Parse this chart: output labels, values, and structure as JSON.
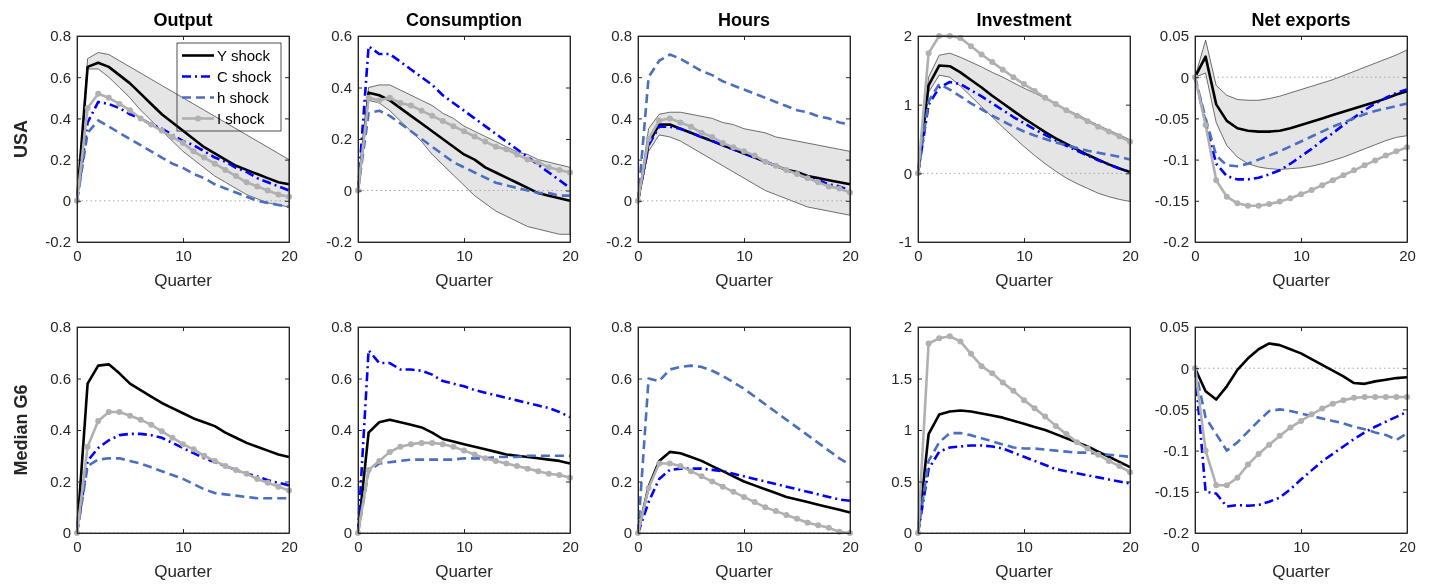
{
  "chart_data": [
    {
      "type": "line",
      "title": "Output",
      "xlabel": "Quarter",
      "ylabel": "USA",
      "x": [
        0,
        1,
        2,
        3,
        4,
        5,
        6,
        7,
        8,
        9,
        10,
        11,
        12,
        13,
        14,
        15,
        16,
        17,
        18,
        19,
        20
      ],
      "xlim": [
        0,
        20
      ],
      "xticks": [
        0,
        10,
        20
      ],
      "ylim": [
        -0.2,
        0.8
      ],
      "yticks": [
        -0.2,
        0,
        0.2,
        0.4,
        0.6,
        0.8
      ],
      "legend": "top right",
      "ref_lines": [
        {
          "axis": "y",
          "value": 0,
          "color": "#a6a6a6",
          "line_style": "dotted"
        }
      ],
      "series": [
        {
          "name": "Y shock",
          "color": "#000000",
          "line_style": "solid",
          "values": [
            0,
            0.65,
            0.67,
            0.65,
            0.61,
            0.57,
            0.52,
            0.47,
            0.42,
            0.38,
            0.34,
            0.3,
            0.26,
            0.23,
            0.2,
            0.17,
            0.15,
            0.13,
            0.11,
            0.09,
            0.08
          ],
          "lower": [
            0,
            0.64,
            0.64,
            0.6,
            0.55,
            0.5,
            0.44,
            0.39,
            0.34,
            0.29,
            0.24,
            0.2,
            0.16,
            0.12,
            0.09,
            0.06,
            0.03,
            0.01,
            -0.01,
            -0.02,
            -0.03
          ],
          "upper": [
            0,
            0.69,
            0.72,
            0.71,
            0.68,
            0.65,
            0.62,
            0.59,
            0.56,
            0.53,
            0.5,
            0.47,
            0.44,
            0.41,
            0.38,
            0.35,
            0.32,
            0.29,
            0.26,
            0.23,
            0.2
          ]
        },
        {
          "name": "C shock",
          "color": "#0000ff",
          "line_style": "dashdot",
          "values": [
            0,
            0.38,
            0.48,
            0.47,
            0.45,
            0.42,
            0.4,
            0.37,
            0.35,
            0.32,
            0.29,
            0.27,
            0.24,
            0.21,
            0.19,
            0.16,
            0.14,
            0.11,
            0.09,
            0.07,
            0.05
          ]
        },
        {
          "name": "h shock",
          "color": "#4a6fc0",
          "line_style": "dashed",
          "values": [
            0,
            0.33,
            0.39,
            0.36,
            0.33,
            0.3,
            0.27,
            0.24,
            0.21,
            0.18,
            0.16,
            0.13,
            0.11,
            0.08,
            0.06,
            0.04,
            0.02,
            0.0,
            -0.01,
            -0.02,
            -0.03
          ]
        },
        {
          "name": "I shock",
          "color": "#b0b0b0",
          "line_style": "solid",
          "marker": "circle",
          "values": [
            0,
            0.45,
            0.52,
            0.5,
            0.47,
            0.44,
            0.4,
            0.37,
            0.34,
            0.31,
            0.28,
            0.24,
            0.21,
            0.18,
            0.15,
            0.12,
            0.09,
            0.07,
            0.05,
            0.03,
            0.02
          ]
        }
      ]
    },
    {
      "type": "line",
      "title": "Consumption",
      "xlabel": "Quarter",
      "x": [
        0,
        1,
        2,
        3,
        4,
        5,
        6,
        7,
        8,
        9,
        10,
        11,
        12,
        13,
        14,
        15,
        16,
        17,
        18,
        19,
        20
      ],
      "xlim": [
        0,
        20
      ],
      "xticks": [
        0,
        10,
        20
      ],
      "ylim": [
        -0.2,
        0.6
      ],
      "yticks": [
        -0.2,
        0,
        0.2,
        0.4,
        0.6
      ],
      "ref_lines": [
        {
          "axis": "y",
          "value": 0,
          "color": "#a6a6a6",
          "line_style": "dotted"
        }
      ],
      "series": [
        {
          "color": "#000000",
          "line_style": "solid",
          "values": [
            0,
            0.38,
            0.37,
            0.35,
            0.32,
            0.29,
            0.26,
            0.23,
            0.2,
            0.17,
            0.14,
            0.12,
            0.09,
            0.07,
            0.05,
            0.03,
            0.01,
            -0.01,
            -0.02,
            -0.03,
            -0.04
          ],
          "lower": [
            0,
            0.35,
            0.34,
            0.31,
            0.27,
            0.23,
            0.19,
            0.14,
            0.1,
            0.06,
            0.02,
            -0.02,
            -0.05,
            -0.08,
            -0.1,
            -0.12,
            -0.14,
            -0.15,
            -0.16,
            -0.17,
            -0.17
          ],
          "upper": [
            0,
            0.4,
            0.41,
            0.41,
            0.39,
            0.37,
            0.35,
            0.33,
            0.3,
            0.28,
            0.25,
            0.23,
            0.21,
            0.19,
            0.17,
            0.15,
            0.14,
            0.12,
            0.11,
            0.1,
            0.09
          ]
        },
        {
          "color": "#0000ff",
          "line_style": "dashdot",
          "values": [
            0,
            0.56,
            0.53,
            0.53,
            0.5,
            0.47,
            0.44,
            0.41,
            0.37,
            0.34,
            0.31,
            0.28,
            0.25,
            0.22,
            0.19,
            0.16,
            0.13,
            0.1,
            0.07,
            0.04,
            0.01
          ]
        },
        {
          "color": "#4a6fc0",
          "line_style": "dashed",
          "values": [
            0,
            0.3,
            0.31,
            0.29,
            0.26,
            0.23,
            0.2,
            0.17,
            0.14,
            0.11,
            0.09,
            0.07,
            0.05,
            0.03,
            0.02,
            0.01,
            0.0,
            -0.01,
            -0.01,
            -0.02,
            -0.02
          ]
        },
        {
          "color": "#b0b0b0",
          "line_style": "solid",
          "marker": "circle",
          "values": [
            0,
            0.36,
            0.35,
            0.36,
            0.34,
            0.33,
            0.31,
            0.29,
            0.27,
            0.25,
            0.23,
            0.21,
            0.19,
            0.17,
            0.16,
            0.14,
            0.12,
            0.11,
            0.09,
            0.08,
            0.07
          ]
        }
      ]
    },
    {
      "type": "line",
      "title": "Hours",
      "xlabel": "Quarter",
      "x": [
        0,
        1,
        2,
        3,
        4,
        5,
        6,
        7,
        8,
        9,
        10,
        11,
        12,
        13,
        14,
        15,
        16,
        17,
        18,
        19,
        20
      ],
      "xlim": [
        0,
        20
      ],
      "xticks": [
        0,
        10,
        20
      ],
      "ylim": [
        -0.2,
        0.8
      ],
      "yticks": [
        -0.2,
        0,
        0.2,
        0.4,
        0.6,
        0.8
      ],
      "ref_lines": [
        {
          "axis": "y",
          "value": 0,
          "color": "#a6a6a6",
          "line_style": "dotted"
        }
      ],
      "series": [
        {
          "color": "#000000",
          "line_style": "solid",
          "values": [
            0,
            0.28,
            0.37,
            0.37,
            0.35,
            0.33,
            0.31,
            0.29,
            0.27,
            0.25,
            0.23,
            0.21,
            0.19,
            0.17,
            0.15,
            0.14,
            0.12,
            0.11,
            0.1,
            0.09,
            0.08
          ],
          "lower": [
            0,
            0.24,
            0.32,
            0.31,
            0.29,
            0.26,
            0.23,
            0.2,
            0.17,
            0.14,
            0.11,
            0.08,
            0.05,
            0.03,
            0.01,
            -0.01,
            -0.03,
            -0.04,
            -0.05,
            -0.06,
            -0.07
          ],
          "upper": [
            0,
            0.35,
            0.42,
            0.43,
            0.43,
            0.42,
            0.41,
            0.4,
            0.38,
            0.37,
            0.35,
            0.34,
            0.33,
            0.31,
            0.3,
            0.29,
            0.28,
            0.27,
            0.26,
            0.25,
            0.24
          ]
        },
        {
          "color": "#0000ff",
          "line_style": "dashdot",
          "values": [
            0,
            0.27,
            0.36,
            0.36,
            0.35,
            0.33,
            0.31,
            0.29,
            0.27,
            0.25,
            0.23,
            0.21,
            0.19,
            0.17,
            0.15,
            0.13,
            0.11,
            0.1,
            0.08,
            0.07,
            0.05
          ]
        },
        {
          "color": "#4a6fc0",
          "line_style": "dashed",
          "values": [
            0,
            0.6,
            0.68,
            0.71,
            0.69,
            0.66,
            0.63,
            0.61,
            0.58,
            0.56,
            0.54,
            0.52,
            0.5,
            0.48,
            0.46,
            0.44,
            0.43,
            0.41,
            0.4,
            0.38,
            0.37
          ]
        },
        {
          "color": "#b0b0b0",
          "line_style": "solid",
          "marker": "circle",
          "values": [
            0,
            0.3,
            0.39,
            0.4,
            0.38,
            0.36,
            0.33,
            0.31,
            0.28,
            0.26,
            0.24,
            0.22,
            0.19,
            0.17,
            0.15,
            0.13,
            0.11,
            0.09,
            0.07,
            0.06,
            0.04
          ]
        }
      ]
    },
    {
      "type": "line",
      "title": "Investment",
      "xlabel": "Quarter",
      "x": [
        0,
        1,
        2,
        3,
        4,
        5,
        6,
        7,
        8,
        9,
        10,
        11,
        12,
        13,
        14,
        15,
        16,
        17,
        18,
        19,
        20
      ],
      "xlim": [
        0,
        20
      ],
      "xticks": [
        0,
        10,
        20
      ],
      "ylim": [
        -1,
        2
      ],
      "yticks": [
        -1,
        0,
        1,
        2
      ],
      "ref_lines": [
        {
          "axis": "y",
          "value": 0,
          "color": "#a6a6a6",
          "line_style": "dotted"
        }
      ],
      "series": [
        {
          "color": "#000000",
          "line_style": "solid",
          "values": [
            0,
            1.28,
            1.57,
            1.56,
            1.47,
            1.36,
            1.25,
            1.13,
            1.02,
            0.91,
            0.8,
            0.7,
            0.6,
            0.51,
            0.43,
            0.35,
            0.27,
            0.2,
            0.13,
            0.07,
            0.02
          ],
          "lower": [
            0,
            1.18,
            1.43,
            1.4,
            1.27,
            1.12,
            0.97,
            0.82,
            0.67,
            0.53,
            0.39,
            0.26,
            0.14,
            0.03,
            -0.07,
            -0.15,
            -0.22,
            -0.29,
            -0.34,
            -0.38,
            -0.41
          ],
          "upper": [
            0,
            1.4,
            1.72,
            1.75,
            1.69,
            1.62,
            1.55,
            1.47,
            1.4,
            1.32,
            1.24,
            1.17,
            1.09,
            1.01,
            0.93,
            0.86,
            0.78,
            0.7,
            0.63,
            0.56,
            0.49
          ]
        },
        {
          "color": "#0000ff",
          "line_style": "dashdot",
          "values": [
            0,
            1.0,
            1.25,
            1.33,
            1.3,
            1.21,
            1.12,
            1.02,
            0.92,
            0.82,
            0.73,
            0.64,
            0.56,
            0.48,
            0.4,
            0.33,
            0.26,
            0.19,
            0.13,
            0.07,
            0.02
          ]
        },
        {
          "color": "#4a6fc0",
          "line_style": "dashed",
          "values": [
            0,
            1.05,
            1.3,
            1.22,
            1.12,
            1.02,
            0.93,
            0.84,
            0.76,
            0.68,
            0.61,
            0.55,
            0.5,
            0.45,
            0.41,
            0.37,
            0.33,
            0.3,
            0.27,
            0.24,
            0.2
          ]
        },
        {
          "color": "#b0b0b0",
          "line_style": "solid",
          "marker": "circle",
          "values": [
            0,
            1.75,
            2.0,
            2.0,
            1.97,
            1.85,
            1.73,
            1.62,
            1.51,
            1.4,
            1.3,
            1.2,
            1.1,
            1.01,
            0.92,
            0.84,
            0.76,
            0.68,
            0.61,
            0.54,
            0.46
          ]
        }
      ]
    },
    {
      "type": "line",
      "title": "Net exports",
      "xlabel": "Quarter",
      "x": [
        0,
        1,
        2,
        3,
        4,
        5,
        6,
        7,
        8,
        9,
        10,
        11,
        12,
        13,
        14,
        15,
        16,
        17,
        18,
        19,
        20
      ],
      "xlim": [
        0,
        20
      ],
      "xticks": [
        0,
        10,
        20
      ],
      "ylim": [
        -0.2,
        0.05
      ],
      "yticks": [
        -0.2,
        -0.15,
        -0.1,
        -0.05,
        0,
        0.05
      ],
      "ref_lines": [
        {
          "axis": "y",
          "value": 0,
          "color": "#a6a6a6",
          "line_style": "dotted"
        }
      ],
      "series": [
        {
          "color": "#000000",
          "line_style": "solid",
          "values": [
            0,
            0.025,
            -0.033,
            -0.053,
            -0.062,
            -0.065,
            -0.066,
            -0.066,
            -0.065,
            -0.062,
            -0.058,
            -0.054,
            -0.05,
            -0.046,
            -0.042,
            -0.038,
            -0.034,
            -0.03,
            -0.026,
            -0.021,
            -0.017
          ],
          "lower": [
            0,
            0.005,
            -0.055,
            -0.083,
            -0.097,
            -0.105,
            -0.109,
            -0.111,
            -0.112,
            -0.111,
            -0.11,
            -0.108,
            -0.105,
            -0.101,
            -0.097,
            -0.092,
            -0.087,
            -0.082,
            -0.077,
            -0.073,
            -0.071
          ],
          "upper": [
            0,
            0.045,
            -0.01,
            -0.022,
            -0.027,
            -0.028,
            -0.028,
            -0.026,
            -0.023,
            -0.019,
            -0.015,
            -0.011,
            -0.007,
            -0.003,
            0.002,
            0.007,
            0.012,
            0.017,
            0.022,
            0.027,
            0.033
          ]
        },
        {
          "color": "#0000ff",
          "line_style": "dashdot",
          "values": [
            0,
            -0.055,
            -0.105,
            -0.12,
            -0.124,
            -0.124,
            -0.122,
            -0.118,
            -0.113,
            -0.105,
            -0.096,
            -0.087,
            -0.077,
            -0.068,
            -0.058,
            -0.049,
            -0.04,
            -0.032,
            -0.025,
            -0.019,
            -0.015
          ]
        },
        {
          "color": "#4a6fc0",
          "line_style": "dashed",
          "values": [
            0,
            -0.05,
            -0.095,
            -0.107,
            -0.108,
            -0.105,
            -0.1,
            -0.095,
            -0.09,
            -0.084,
            -0.078,
            -0.072,
            -0.066,
            -0.06,
            -0.055,
            -0.05,
            -0.045,
            -0.041,
            -0.038,
            -0.035,
            -0.032
          ]
        },
        {
          "color": "#b0b0b0",
          "line_style": "solid",
          "marker": "circle",
          "values": [
            0,
            -0.058,
            -0.125,
            -0.145,
            -0.153,
            -0.156,
            -0.156,
            -0.154,
            -0.151,
            -0.147,
            -0.142,
            -0.137,
            -0.131,
            -0.125,
            -0.119,
            -0.113,
            -0.107,
            -0.101,
            -0.095,
            -0.09,
            -0.085
          ]
        }
      ]
    },
    {
      "type": "line",
      "xlabel": "Quarter",
      "ylabel": "Median G6",
      "x": [
        0,
        1,
        2,
        3,
        4,
        5,
        6,
        7,
        8,
        9,
        10,
        11,
        12,
        13,
        14,
        15,
        16,
        17,
        18,
        19,
        20
      ],
      "xlim": [
        0,
        20
      ],
      "xticks": [
        0,
        10,
        20
      ],
      "ylim": [
        0,
        0.8
      ],
      "yticks": [
        0,
        0.2,
        0.4,
        0.6,
        0.8
      ],
      "ref_lines": [
        {
          "axis": "y",
          "value": 0,
          "color": "#a6a6a6",
          "line_style": "dotted"
        }
      ],
      "series": [
        {
          "color": "#000000",
          "line_style": "solid",
          "values": [
            0,
            0.58,
            0.65,
            0.655,
            0.62,
            0.58,
            0.555,
            0.53,
            0.505,
            0.485,
            0.465,
            0.445,
            0.43,
            0.415,
            0.39,
            0.37,
            0.35,
            0.335,
            0.32,
            0.305,
            0.295
          ]
        },
        {
          "color": "#0000ff",
          "line_style": "dashdot",
          "values": [
            0,
            0.28,
            0.33,
            0.36,
            0.38,
            0.385,
            0.385,
            0.38,
            0.37,
            0.35,
            0.33,
            0.31,
            0.29,
            0.275,
            0.26,
            0.245,
            0.23,
            0.22,
            0.205,
            0.195,
            0.185
          ]
        },
        {
          "color": "#4a6fc0",
          "line_style": "dashed",
          "values": [
            0,
            0.26,
            0.285,
            0.29,
            0.29,
            0.28,
            0.27,
            0.255,
            0.24,
            0.225,
            0.21,
            0.19,
            0.17,
            0.155,
            0.15,
            0.145,
            0.14,
            0.135,
            0.135,
            0.135,
            0.135
          ]
        },
        {
          "color": "#b0b0b0",
          "line_style": "solid",
          "marker": "circle",
          "values": [
            0,
            0.335,
            0.435,
            0.47,
            0.47,
            0.455,
            0.44,
            0.42,
            0.395,
            0.37,
            0.345,
            0.325,
            0.3,
            0.28,
            0.26,
            0.245,
            0.23,
            0.21,
            0.195,
            0.18,
            0.165
          ]
        }
      ]
    },
    {
      "type": "line",
      "xlabel": "Quarter",
      "x": [
        0,
        1,
        2,
        3,
        4,
        5,
        6,
        7,
        8,
        9,
        10,
        11,
        12,
        13,
        14,
        15,
        16,
        17,
        18,
        19,
        20
      ],
      "xlim": [
        0,
        20
      ],
      "xticks": [
        0,
        10,
        20
      ],
      "ylim": [
        0,
        0.8
      ],
      "yticks": [
        0,
        0.2,
        0.4,
        0.6,
        0.8
      ],
      "ref_lines": [
        {
          "axis": "y",
          "value": 0,
          "color": "#a6a6a6",
          "line_style": "dotted"
        }
      ],
      "series": [
        {
          "color": "#000000",
          "line_style": "solid",
          "values": [
            0,
            0.39,
            0.43,
            0.44,
            0.43,
            0.42,
            0.41,
            0.39,
            0.365,
            0.355,
            0.345,
            0.335,
            0.325,
            0.315,
            0.305,
            0.3,
            0.295,
            0.29,
            0.285,
            0.28,
            0.27
          ]
        },
        {
          "color": "#0000ff",
          "line_style": "dashdot",
          "values": [
            0,
            0.71,
            0.66,
            0.66,
            0.635,
            0.635,
            0.63,
            0.615,
            0.59,
            0.58,
            0.57,
            0.555,
            0.545,
            0.535,
            0.525,
            0.515,
            0.505,
            0.495,
            0.485,
            0.47,
            0.45
          ]
        },
        {
          "color": "#4a6fc0",
          "line_style": "dashed",
          "values": [
            0,
            0.24,
            0.27,
            0.275,
            0.28,
            0.285,
            0.285,
            0.285,
            0.285,
            0.285,
            0.29,
            0.29,
            0.29,
            0.295,
            0.295,
            0.295,
            0.3,
            0.3,
            0.3,
            0.3,
            0.3
          ]
        },
        {
          "color": "#b0b0b0",
          "line_style": "solid",
          "marker": "circle",
          "values": [
            0,
            0.245,
            0.28,
            0.315,
            0.335,
            0.345,
            0.35,
            0.35,
            0.345,
            0.335,
            0.32,
            0.305,
            0.29,
            0.28,
            0.27,
            0.26,
            0.25,
            0.24,
            0.23,
            0.225,
            0.215
          ]
        }
      ]
    },
    {
      "type": "line",
      "xlabel": "Quarter",
      "x": [
        0,
        1,
        2,
        3,
        4,
        5,
        6,
        7,
        8,
        9,
        10,
        11,
        12,
        13,
        14,
        15,
        16,
        17,
        18,
        19,
        20
      ],
      "xlim": [
        0,
        20
      ],
      "xticks": [
        0,
        10,
        20
      ],
      "ylim": [
        0,
        0.8
      ],
      "yticks": [
        0,
        0.2,
        0.4,
        0.6,
        0.8
      ],
      "ref_lines": [
        {
          "axis": "y",
          "value": 0,
          "color": "#a6a6a6",
          "line_style": "dotted"
        }
      ],
      "series": [
        {
          "color": "#000000",
          "line_style": "solid",
          "values": [
            0,
            0.18,
            0.28,
            0.315,
            0.31,
            0.295,
            0.28,
            0.26,
            0.24,
            0.22,
            0.2,
            0.185,
            0.17,
            0.155,
            0.14,
            0.13,
            0.12,
            0.11,
            0.1,
            0.09,
            0.08
          ]
        },
        {
          "color": "#0000ff",
          "line_style": "dashdot",
          "values": [
            0,
            0.12,
            0.21,
            0.245,
            0.25,
            0.25,
            0.25,
            0.245,
            0.24,
            0.23,
            0.22,
            0.21,
            0.2,
            0.19,
            0.18,
            0.17,
            0.16,
            0.15,
            0.14,
            0.13,
            0.125
          ]
        },
        {
          "color": "#4a6fc0",
          "line_style": "dashed",
          "values": [
            0,
            0.6,
            0.59,
            0.635,
            0.645,
            0.65,
            0.645,
            0.63,
            0.61,
            0.585,
            0.56,
            0.53,
            0.5,
            0.47,
            0.44,
            0.41,
            0.38,
            0.35,
            0.32,
            0.29,
            0.265
          ]
        },
        {
          "color": "#b0b0b0",
          "line_style": "solid",
          "marker": "circle",
          "values": [
            0,
            0.175,
            0.27,
            0.27,
            0.26,
            0.24,
            0.22,
            0.2,
            0.18,
            0.16,
            0.14,
            0.12,
            0.1,
            0.085,
            0.07,
            0.055,
            0.04,
            0.03,
            0.02,
            0.005,
            0
          ]
        }
      ]
    },
    {
      "type": "line",
      "xlabel": "Quarter",
      "x": [
        0,
        1,
        2,
        3,
        4,
        5,
        6,
        7,
        8,
        9,
        10,
        11,
        12,
        13,
        14,
        15,
        16,
        17,
        18,
        19,
        20
      ],
      "xlim": [
        0,
        20
      ],
      "xticks": [
        0,
        10,
        20
      ],
      "ylim": [
        0,
        2
      ],
      "yticks": [
        0,
        0.5,
        1,
        1.5,
        2
      ],
      "ref_lines": [
        {
          "axis": "y",
          "value": 0,
          "color": "#a6a6a6",
          "line_style": "dotted"
        }
      ],
      "series": [
        {
          "color": "#000000",
          "line_style": "solid",
          "values": [
            0,
            0.96,
            1.15,
            1.18,
            1.19,
            1.18,
            1.16,
            1.14,
            1.12,
            1.09,
            1.06,
            1.03,
            1.0,
            0.96,
            0.92,
            0.88,
            0.84,
            0.79,
            0.74,
            0.69,
            0.64
          ]
        },
        {
          "color": "#0000ff",
          "line_style": "dashdot",
          "values": [
            0,
            0.62,
            0.79,
            0.83,
            0.84,
            0.85,
            0.85,
            0.84,
            0.82,
            0.78,
            0.74,
            0.7,
            0.66,
            0.62,
            0.6,
            0.58,
            0.56,
            0.54,
            0.52,
            0.5,
            0.48
          ]
        },
        {
          "color": "#4a6fc0",
          "line_style": "dashed",
          "values": [
            0,
            0.7,
            0.88,
            0.97,
            0.97,
            0.95,
            0.92,
            0.89,
            0.86,
            0.83,
            0.82,
            0.82,
            0.81,
            0.8,
            0.79,
            0.78,
            0.78,
            0.77,
            0.76,
            0.75,
            0.74
          ]
        },
        {
          "color": "#b0b0b0",
          "line_style": "solid",
          "marker": "circle",
          "values": [
            0,
            1.84,
            1.89,
            1.91,
            1.86,
            1.74,
            1.62,
            1.55,
            1.46,
            1.38,
            1.29,
            1.21,
            1.13,
            1.04,
            0.96,
            0.88,
            0.82,
            0.76,
            0.7,
            0.65,
            0.59
          ]
        }
      ]
    },
    {
      "type": "line",
      "xlabel": "Quarter",
      "x": [
        0,
        1,
        2,
        3,
        4,
        5,
        6,
        7,
        8,
        9,
        10,
        11,
        12,
        13,
        14,
        15,
        16,
        17,
        18,
        19,
        20
      ],
      "xlim": [
        0,
        20
      ],
      "xticks": [
        0,
        10,
        20
      ],
      "ylim": [
        -0.2,
        0.05
      ],
      "yticks": [
        -0.2,
        -0.15,
        -0.1,
        -0.05,
        0,
        0.05
      ],
      "ref_lines": [
        {
          "axis": "y",
          "value": 0,
          "color": "#a6a6a6",
          "line_style": "dotted"
        }
      ],
      "series": [
        {
          "color": "#000000",
          "line_style": "solid",
          "values": [
            0,
            -0.028,
            -0.038,
            -0.022,
            -0.002,
            0.012,
            0.023,
            0.03,
            0.028,
            0.023,
            0.018,
            0.011,
            0.004,
            -0.003,
            -0.01,
            -0.018,
            -0.019,
            -0.016,
            -0.014,
            -0.012,
            -0.011
          ]
        },
        {
          "color": "#0000ff",
          "line_style": "dashdot",
          "values": [
            0,
            -0.15,
            -0.152,
            -0.168,
            -0.166,
            -0.167,
            -0.166,
            -0.162,
            -0.157,
            -0.147,
            -0.135,
            -0.124,
            -0.113,
            -0.104,
            -0.095,
            -0.086,
            -0.078,
            -0.071,
            -0.065,
            -0.059,
            -0.053
          ]
        },
        {
          "color": "#4a6fc0",
          "line_style": "dashed",
          "values": [
            0,
            -0.06,
            -0.08,
            -0.1,
            -0.09,
            -0.077,
            -0.064,
            -0.052,
            -0.05,
            -0.052,
            -0.055,
            -0.058,
            -0.061,
            -0.064,
            -0.067,
            -0.071,
            -0.074,
            -0.078,
            -0.081,
            -0.087,
            -0.079
          ]
        },
        {
          "color": "#b0b0b0",
          "line_style": "solid",
          "marker": "circle",
          "values": [
            0,
            -0.1,
            -0.142,
            -0.142,
            -0.133,
            -0.117,
            -0.104,
            -0.093,
            -0.082,
            -0.072,
            -0.064,
            -0.056,
            -0.049,
            -0.043,
            -0.039,
            -0.036,
            -0.035,
            -0.035,
            -0.035,
            -0.035,
            -0.035
          ]
        }
      ]
    }
  ]
}
